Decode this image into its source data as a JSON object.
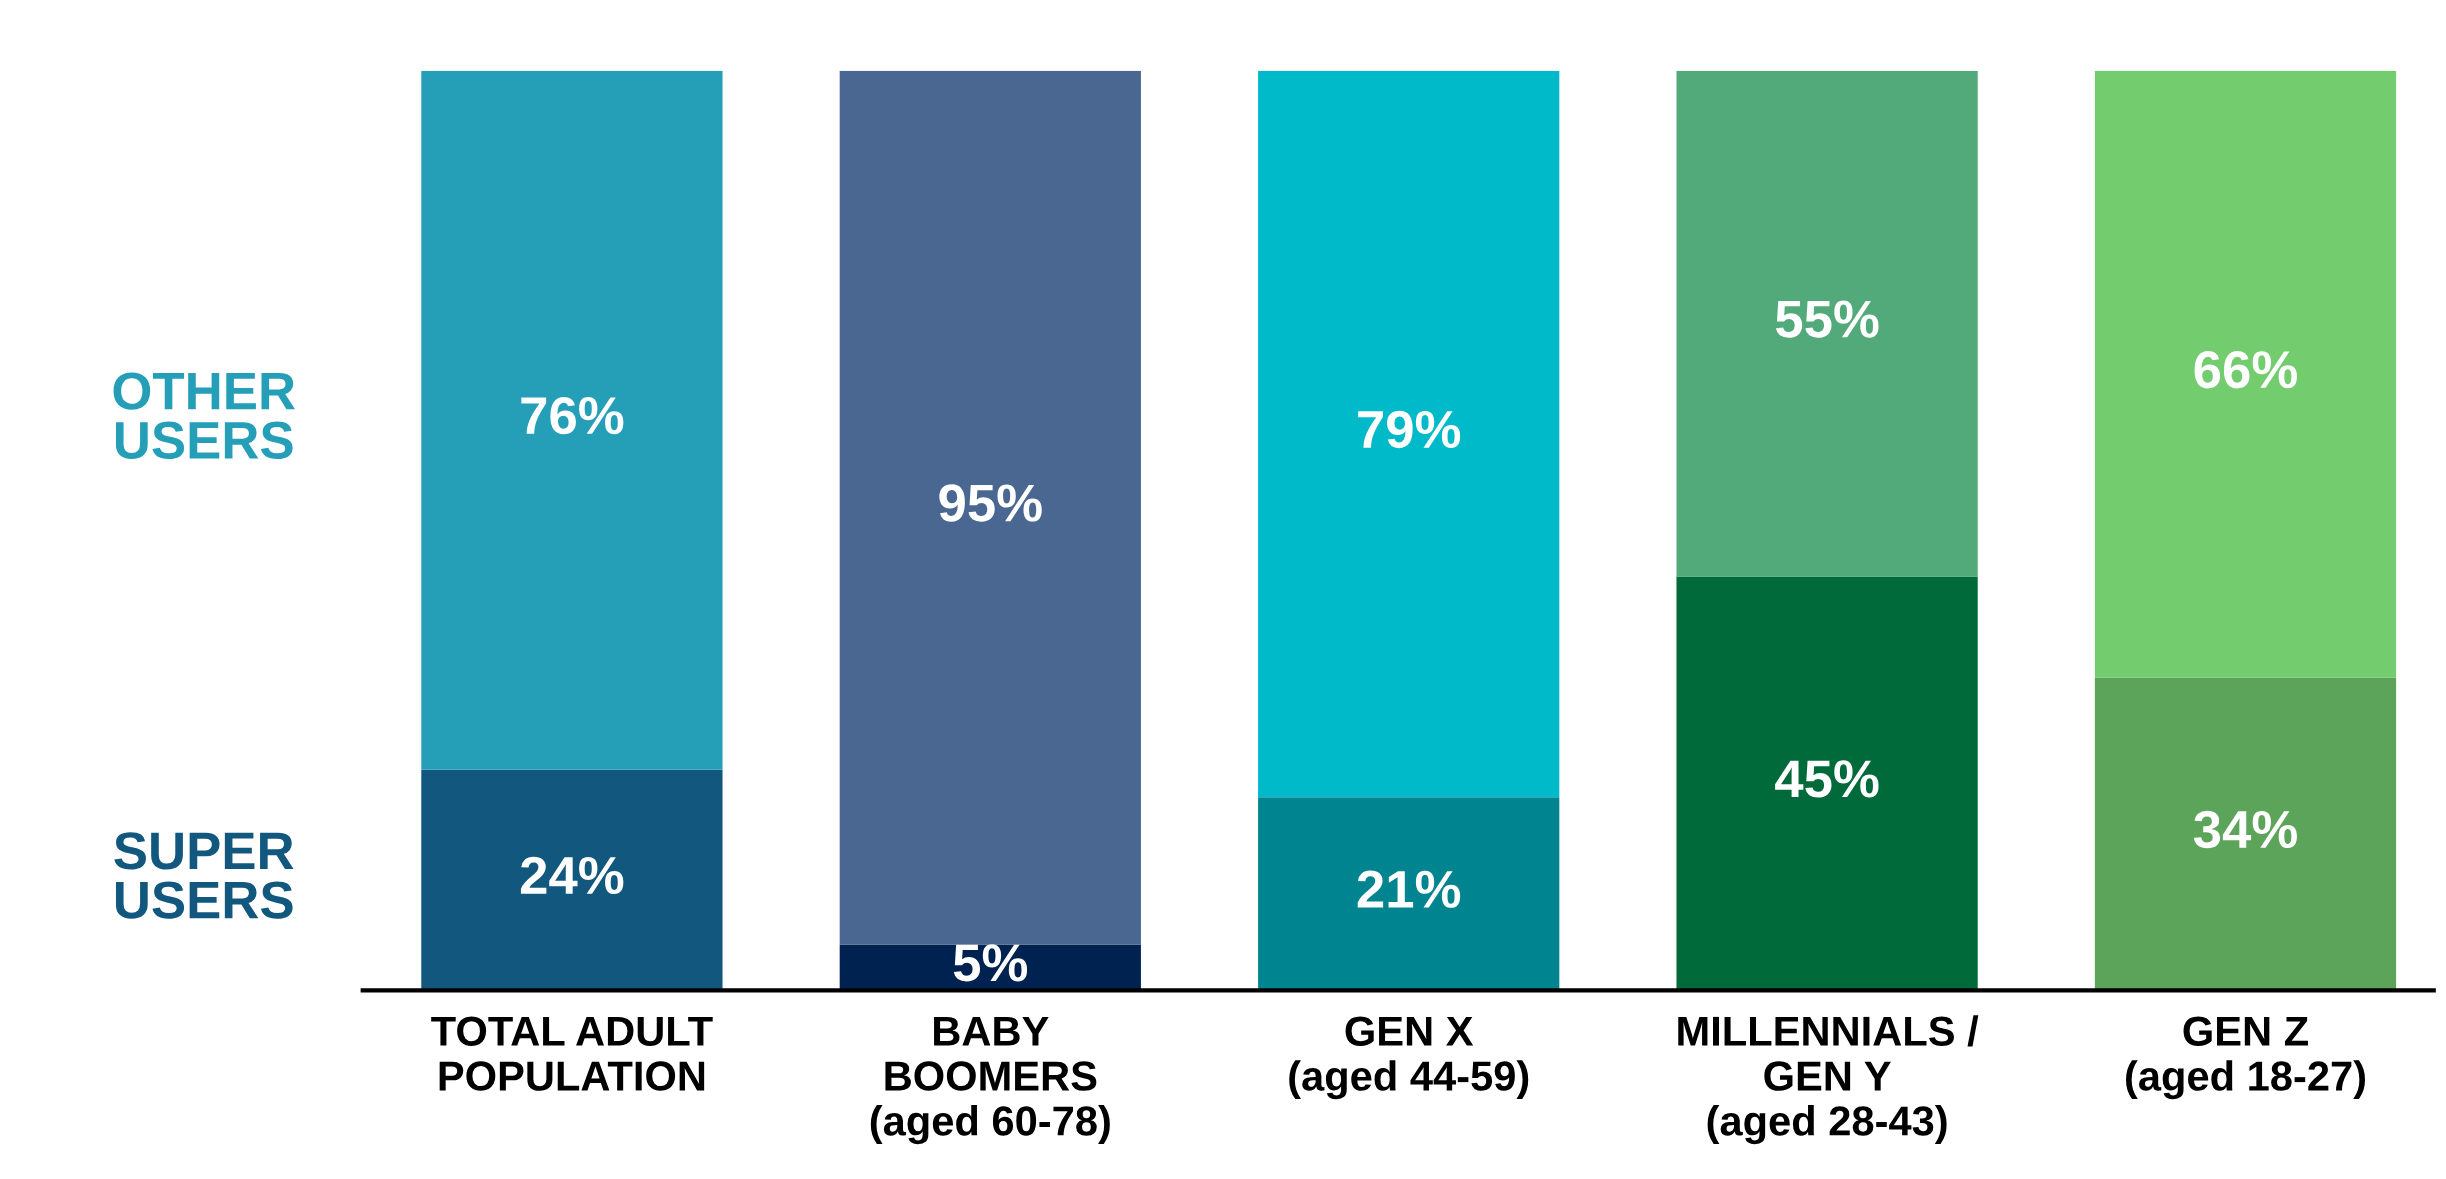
{
  "chart_data": {
    "type": "bar",
    "stacked": true,
    "legend": false,
    "grid": false,
    "categories": [
      "TOTAL ADULT\nPOPULATION",
      "BABY\nBOOMERS\n(aged 60-78)",
      "GEN X\n(aged 44-59)",
      "MILLENNIALS /\nGEN Y\n(aged 28-43)",
      "GEN Z\n(aged 18-27)"
    ],
    "series": [
      {
        "name": "SUPER\nUSERS",
        "color": "#12587e",
        "colors": [
          "#12587e",
          "#002250",
          "#008590",
          "#006a3a",
          "#5ca45a"
        ],
        "values": [
          24,
          5,
          21,
          45,
          34
        ],
        "value_labels": [
          "24%",
          "5%",
          "21%",
          "45%",
          "34%"
        ]
      },
      {
        "name": "OTHER\nUSERS",
        "color": "#259fb8",
        "colors": [
          "#259fb8",
          "#4a6792",
          "#00b9c9",
          "#52a97a",
          "#73cc6e"
        ],
        "values": [
          76,
          95,
          79,
          55,
          66
        ],
        "value_labels": [
          "76%",
          "95%",
          "79%",
          "55%",
          "66%"
        ]
      }
    ]
  }
}
